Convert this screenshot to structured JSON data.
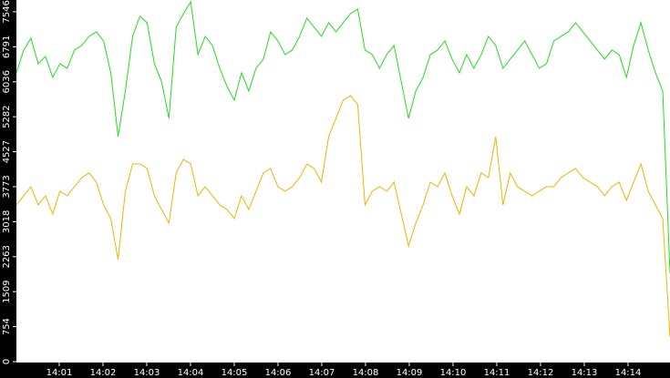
{
  "chart_data": {
    "type": "line",
    "xticks": [
      "14:01",
      "14:02",
      "14:03",
      "14:04",
      "14:05",
      "14:06",
      "14:07",
      "14:08",
      "14:09",
      "14:10",
      "14:11",
      "14:12",
      "14:13",
      "14:14"
    ],
    "ylim": [
      0,
      7800
    ],
    "yticks": [
      0,
      754,
      1509,
      2263,
      3018,
      3773,
      4527,
      5282,
      6036,
      6791,
      7546
    ],
    "series": [
      {
        "color": "#22dd22",
        "values": [
          6229,
          6720,
          6976,
          6426,
          6583,
          6131,
          6426,
          6327,
          6720,
          6819,
          7015,
          7113,
          6917,
          6229,
          4854,
          5836,
          7015,
          7447,
          7310,
          6426,
          6033,
          5247,
          7212,
          7506,
          7762,
          6622,
          7015,
          6819,
          6327,
          5934,
          5640,
          6229,
          5836,
          6327,
          6524,
          7113,
          6917,
          6622,
          6720,
          7015,
          7408,
          7212,
          7015,
          7310,
          7113,
          7310,
          7506,
          7605,
          6720,
          6622,
          6327,
          6622,
          6819,
          6033,
          5247,
          5836,
          6131,
          6622,
          6720,
          6917,
          6524,
          6229,
          6622,
          6327,
          6622,
          7015,
          6819,
          6327,
          6524,
          6720,
          6917,
          6622,
          6327,
          6426,
          6917,
          7015,
          7113,
          7310,
          7113,
          6917,
          6720,
          6524,
          6720,
          6622,
          6131,
          6819,
          7310,
          6720,
          6229,
          5836,
          1906
        ]
      },
      {
        "color": "#f0b400",
        "values": [
          3380,
          3576,
          3773,
          3380,
          3576,
          3183,
          3675,
          3576,
          3773,
          3969,
          4068,
          3871,
          3380,
          3085,
          2201,
          3675,
          4264,
          4264,
          4166,
          3576,
          3282,
          2987,
          4068,
          4362,
          4264,
          3576,
          3773,
          3576,
          3380,
          3282,
          3085,
          3576,
          3282,
          3675,
          4068,
          4166,
          3773,
          3675,
          3773,
          3969,
          4264,
          4166,
          3871,
          4854,
          5247,
          5640,
          5738,
          5541,
          3380,
          3675,
          3773,
          3675,
          3871,
          3183,
          2496,
          2987,
          3380,
          3871,
          3773,
          4068,
          3576,
          3183,
          3773,
          3576,
          4068,
          3969,
          4854,
          3380,
          4068,
          3773,
          3675,
          3576,
          3675,
          3773,
          3773,
          3969,
          4068,
          4166,
          3969,
          3871,
          3773,
          3576,
          3773,
          3871,
          3478,
          3871,
          4264,
          3675,
          3380,
          3085,
          531
        ]
      }
    ]
  }
}
